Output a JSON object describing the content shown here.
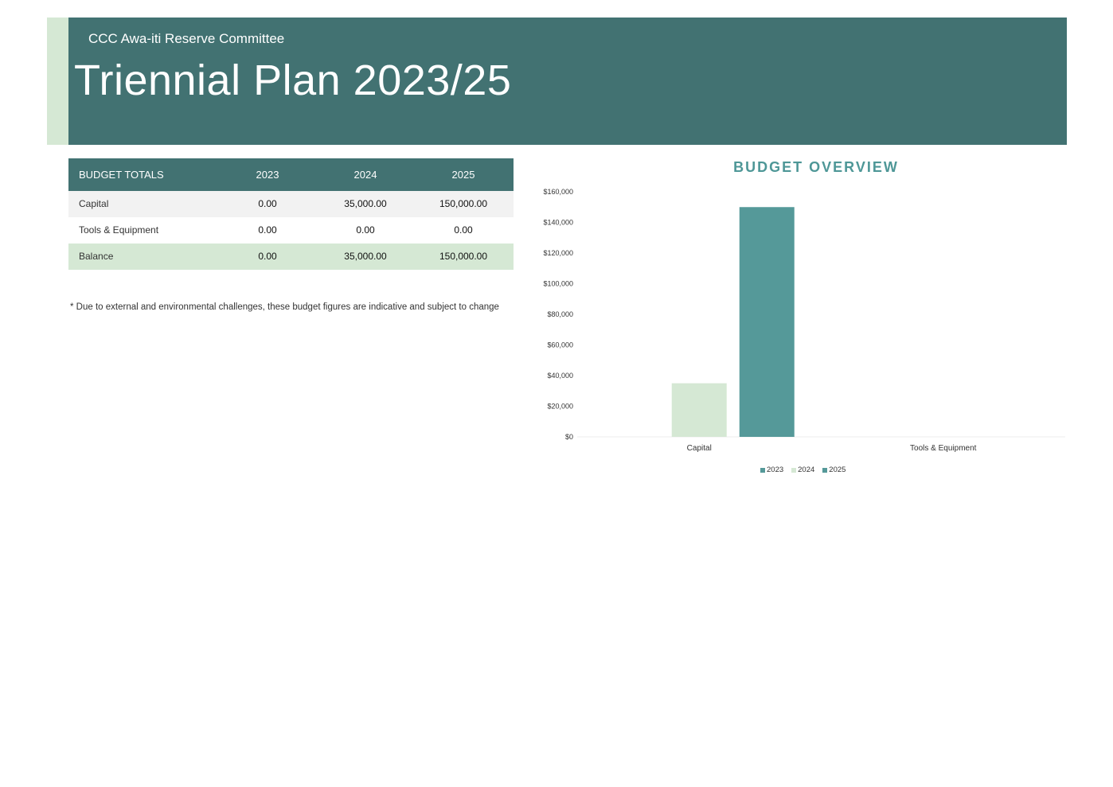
{
  "header": {
    "subtitle": "CCC Awa-iti Reserve Committee",
    "title": "Triennial Plan 2023/25"
  },
  "budget_table": {
    "headers": [
      "BUDGET TOTALS",
      "2023",
      "2024",
      "2025"
    ],
    "rows": [
      {
        "label": "Capital",
        "values": [
          "0.00",
          "35,000.00",
          "150,000.00"
        ]
      },
      {
        "label": "Tools & Equipment",
        "values": [
          "0.00",
          "0.00",
          "0.00"
        ]
      },
      {
        "label": "Balance",
        "values": [
          "0.00",
          "35,000.00",
          "150,000.00"
        ]
      }
    ]
  },
  "note": "* Due to external and environmental challenges, these budget figures are indicative and subject to change",
  "colors": {
    "banner": "#427272",
    "accent_green": "#d5e8d4",
    "series_teal": "#559999"
  },
  "chart_data": {
    "type": "bar",
    "title": "BUDGET OVERVIEW",
    "categories": [
      "Capital",
      "Tools & Equipment"
    ],
    "series": [
      {
        "name": "2023",
        "values": [
          0,
          0
        ],
        "color": "#559999"
      },
      {
        "name": "2024",
        "values": [
          35000,
          0
        ],
        "color": "#d5e8d4"
      },
      {
        "name": "2025",
        "values": [
          150000,
          0
        ],
        "color": "#559999"
      }
    ],
    "ylim": [
      0,
      160000
    ],
    "yticks": [
      "$160,000",
      "$140,000",
      "$120,000",
      "$100,000",
      "$80,000",
      "$60,000",
      "$40,000",
      "$20,000",
      "$0"
    ],
    "legend": "bottom",
    "grid": false
  }
}
